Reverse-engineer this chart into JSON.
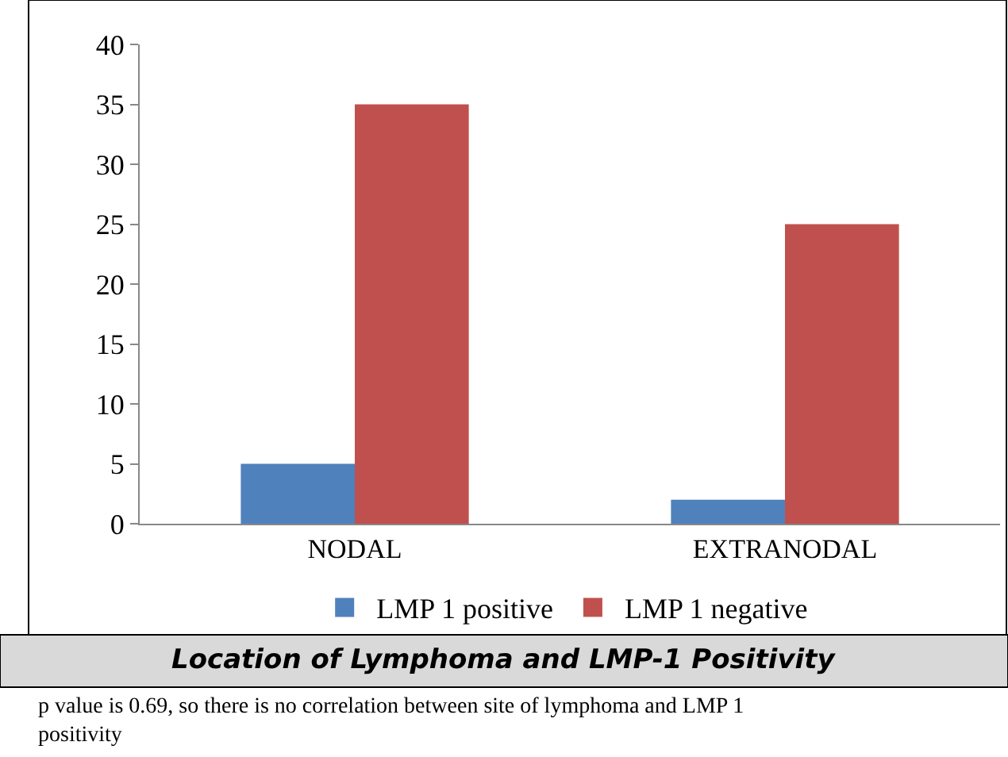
{
  "chart_data": {
    "type": "bar",
    "categories": [
      "NODAL",
      "EXTRANODAL"
    ],
    "series": [
      {
        "name": "LMP 1 positive",
        "color": "#4f81bd",
        "values": [
          5,
          2
        ]
      },
      {
        "name": "LMP 1 negative",
        "color": "#c0504d",
        "values": [
          35,
          25
        ]
      }
    ],
    "ylim": [
      0,
      40
    ],
    "yticks": [
      0,
      5,
      10,
      15,
      20,
      25,
      30,
      35,
      40
    ],
    "legend": "bottom",
    "annotations": [
      "Location of Lymphoma and LMP-1 Positivity",
      "p value is 0.69, so there is no correlation between site of lymphoma and LMP 1 positivity"
    ]
  }
}
